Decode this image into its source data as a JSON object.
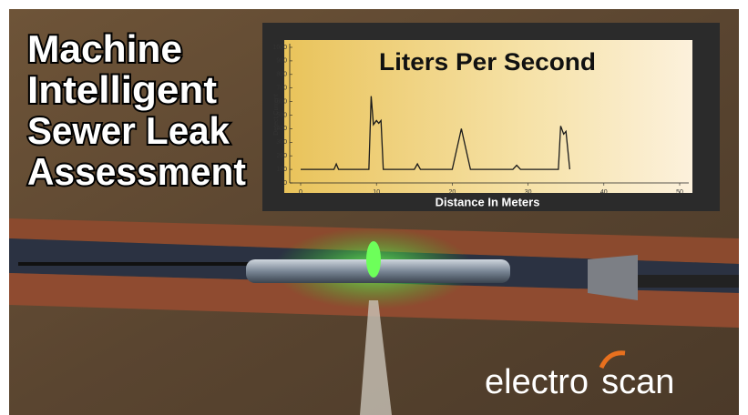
{
  "headline": [
    "Machine",
    "Intelligent",
    "Sewer Leak",
    "Assessment"
  ],
  "logo": {
    "left": "electro",
    "right": "scan"
  },
  "chart_data": {
    "type": "line",
    "title": "Liters Per Second",
    "xlabel": "Distance In Meters",
    "ylabel": "Detect Current",
    "x": [
      0,
      4.4,
      4.7,
      5.0,
      9.0,
      9.3,
      9.6,
      10.0,
      10.3,
      10.6,
      10.9,
      15.0,
      15.4,
      15.8,
      20.0,
      21.2,
      22.4,
      28.0,
      28.5,
      29.0,
      34.0,
      34.3,
      34.7,
      35.0,
      35.5
    ],
    "values": [
      100,
      100,
      140,
      100,
      100,
      640,
      430,
      460,
      440,
      460,
      100,
      100,
      140,
      100,
      100,
      400,
      100,
      100,
      130,
      100,
      100,
      420,
      360,
      380,
      100
    ],
    "color": "#1a1a1a",
    "xlim": [
      0,
      50
    ],
    "xticks": [
      0,
      10,
      20,
      30,
      40,
      50
    ],
    "ylim": [
      0,
      1000
    ],
    "yticks": [
      0,
      100,
      200,
      300,
      400,
      500,
      600,
      700,
      800,
      900,
      1000
    ]
  }
}
